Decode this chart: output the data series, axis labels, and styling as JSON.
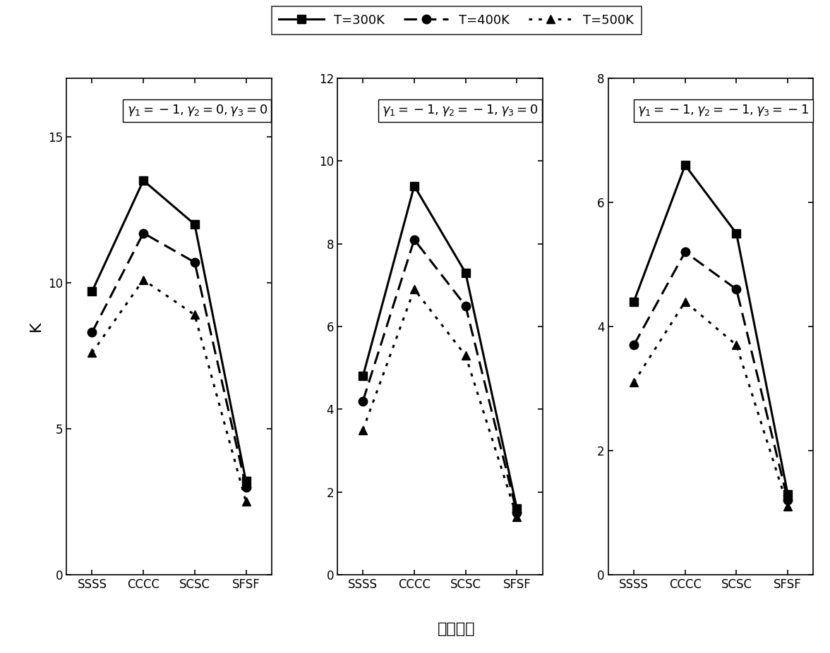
{
  "categories": [
    "SSSS",
    "CCCC",
    "SCSC",
    "SFSF"
  ],
  "panels": [
    {
      "title": "$\\gamma_1=-1,\\gamma_2=0,\\gamma_3=0$",
      "ylim": [
        0,
        17
      ],
      "yticks": [
        0,
        5,
        10,
        15
      ],
      "series": {
        "T300": [
          9.7,
          13.5,
          12.0,
          3.2
        ],
        "T400": [
          8.3,
          11.7,
          10.7,
          3.0
        ],
        "T500": [
          7.6,
          10.1,
          8.9,
          2.5
        ]
      }
    },
    {
      "title": "$\\gamma_1=-1,\\gamma_2=-1,\\gamma_3=0$",
      "ylim": [
        0,
        12
      ],
      "yticks": [
        0,
        2,
        4,
        6,
        8,
        10,
        12
      ],
      "series": {
        "T300": [
          4.8,
          9.4,
          7.3,
          1.6
        ],
        "T400": [
          4.2,
          8.1,
          6.5,
          1.5
        ],
        "T500": [
          3.5,
          6.9,
          5.3,
          1.4
        ]
      }
    },
    {
      "title": "$\\gamma_1=-1,\\gamma_2=-1,\\gamma_3=-1$",
      "ylim": [
        0,
        8
      ],
      "yticks": [
        0,
        2,
        4,
        6,
        8
      ],
      "series": {
        "T300": [
          4.4,
          6.6,
          5.5,
          1.3
        ],
        "T400": [
          3.7,
          5.2,
          4.6,
          1.2
        ],
        "T500": [
          3.1,
          4.4,
          3.7,
          1.1
        ]
      }
    }
  ],
  "legend_labels": [
    "T=300K",
    "T=400K",
    "T=500K"
  ],
  "xlabel": "边界条件",
  "ylabel": "K",
  "line_color": "#000000",
  "bg_color": "#ffffff",
  "title_fontsize": 13,
  "label_fontsize": 14,
  "tick_fontsize": 12,
  "legend_fontsize": 13
}
